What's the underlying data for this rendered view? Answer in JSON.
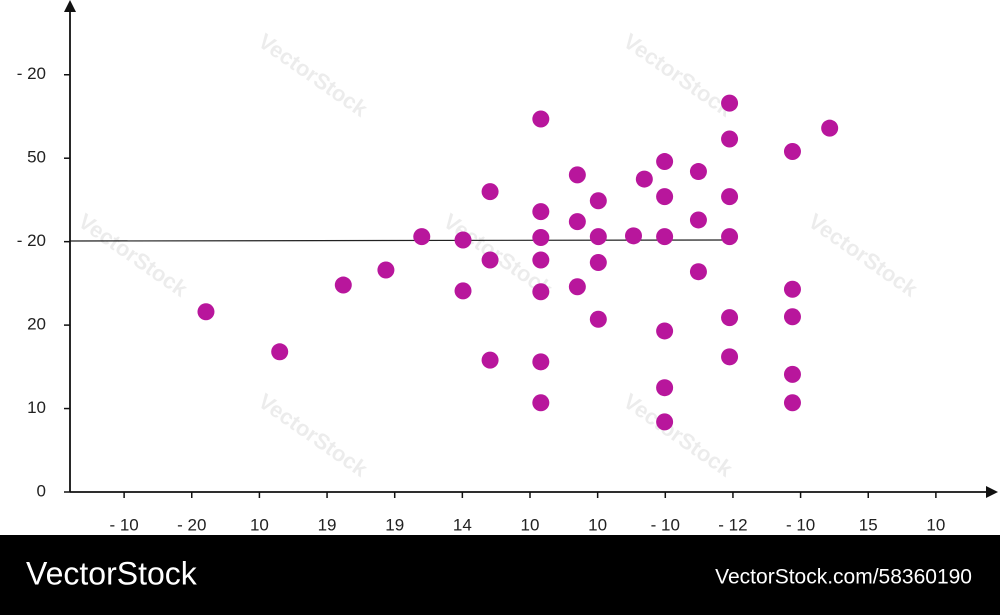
{
  "chart_data": {
    "type": "scatter",
    "x": [
      2.21,
      3.3,
      4.24,
      4.87,
      5.4,
      6.01,
      6.01,
      6.41,
      6.41,
      6.41,
      7.16,
      7.16,
      7.16,
      7.16,
      7.16,
      7.16,
      7.16,
      7.7,
      7.7,
      7.7,
      8.01,
      8.01,
      8.01,
      8.01,
      8.53,
      8.69,
      8.99,
      8.99,
      8.99,
      8.99,
      8.99,
      8.99,
      9.49,
      9.49,
      9.49,
      9.95,
      9.95,
      9.95,
      9.95,
      9.95,
      9.95,
      10.88,
      10.88,
      10.88,
      10.88,
      10.88,
      11.43
    ],
    "values": [
      2.16,
      1.68,
      2.48,
      2.66,
      3.06,
      3.02,
      2.41,
      3.6,
      2.78,
      1.58,
      4.47,
      3.36,
      3.05,
      2.78,
      2.4,
      1.56,
      1.07,
      3.8,
      3.24,
      2.46,
      3.49,
      3.06,
      2.75,
      2.07,
      3.07,
      3.75,
      3.96,
      3.54,
      3.06,
      1.93,
      1.25,
      0.84,
      3.84,
      3.26,
      2.64,
      4.66,
      4.23,
      3.54,
      3.06,
      2.09,
      1.62,
      4.08,
      2.43,
      2.1,
      1.41,
      1.07,
      4.36
    ],
    "color": "#b8169c",
    "xlim": [
      0.2,
      13.8
    ],
    "xticks": [
      {
        "value": 1,
        "label": "- 10"
      },
      {
        "value": 2,
        "label": "- 20"
      },
      {
        "value": 3,
        "label": "10"
      },
      {
        "value": 4,
        "label": "19"
      },
      {
        "value": 5,
        "label": "19"
      },
      {
        "value": 6,
        "label": "14"
      },
      {
        "value": 7,
        "label": "10"
      },
      {
        "value": 8,
        "label": "10"
      },
      {
        "value": 9,
        "label": "- 10"
      },
      {
        "value": 10,
        "label": "- 12"
      },
      {
        "value": 11,
        "label": "- 10"
      },
      {
        "value": 12,
        "label": "15"
      },
      {
        "value": 13,
        "label": "10"
      }
    ],
    "ylim": [
      0,
      5.8
    ],
    "yticks": [
      0,
      {
        "value": 1,
        "label": "10"
      },
      {
        "value": 2,
        "label": "20"
      },
      {
        "value": 3,
        "label": "- 20"
      },
      {
        "value": 4,
        "label": "50"
      },
      {
        "value": 5,
        "label": "- 20"
      }
    ],
    "grid": false
  },
  "watermark": "VectorStock",
  "footer": {
    "brand": "VectorStock",
    "id": "VectorStock.com/58360190"
  }
}
